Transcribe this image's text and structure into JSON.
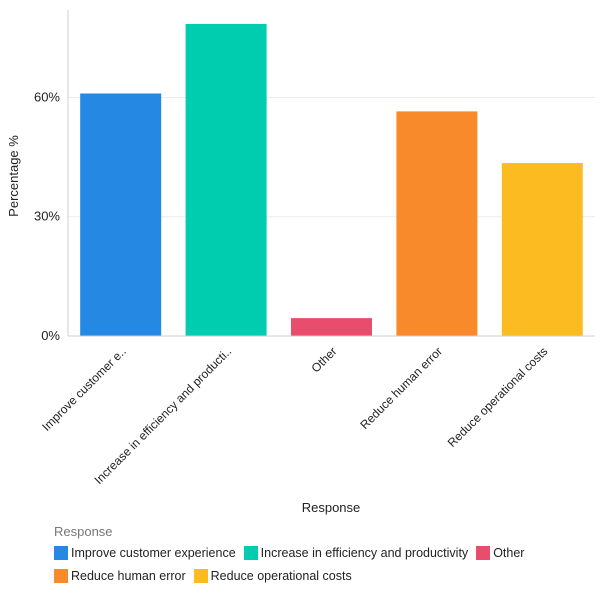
{
  "chart_data": {
    "type": "bar",
    "categories": [
      "Improve customer experience",
      "Increase in efficiency and productivity",
      "Other",
      "Reduce human error",
      "Reduce operational costs"
    ],
    "tick_labels": [
      "Improve customer e..",
      "Increase in efficiency and producti..",
      "Other",
      "Reduce human error",
      "Reduce operational costs"
    ],
    "values": [
      61,
      78.5,
      4.5,
      56.5,
      43.5
    ],
    "colors": [
      "#2589e3",
      "#00cdb0",
      "#e84d6d",
      "#f98a2c",
      "#fdbb22"
    ],
    "xlabel": "Response",
    "ylabel": "Percentage %",
    "ylim": [
      0,
      82
    ],
    "yticks": [
      0,
      30,
      60
    ],
    "ytick_labels": [
      "0%",
      "30%",
      "60%"
    ],
    "grid": true,
    "legend": {
      "title": "Response",
      "position": "bottom-left",
      "items": [
        "Improve customer experience",
        "Increase in efficiency and productivity",
        "Other",
        "Reduce human error",
        "Reduce operational costs"
      ]
    }
  }
}
